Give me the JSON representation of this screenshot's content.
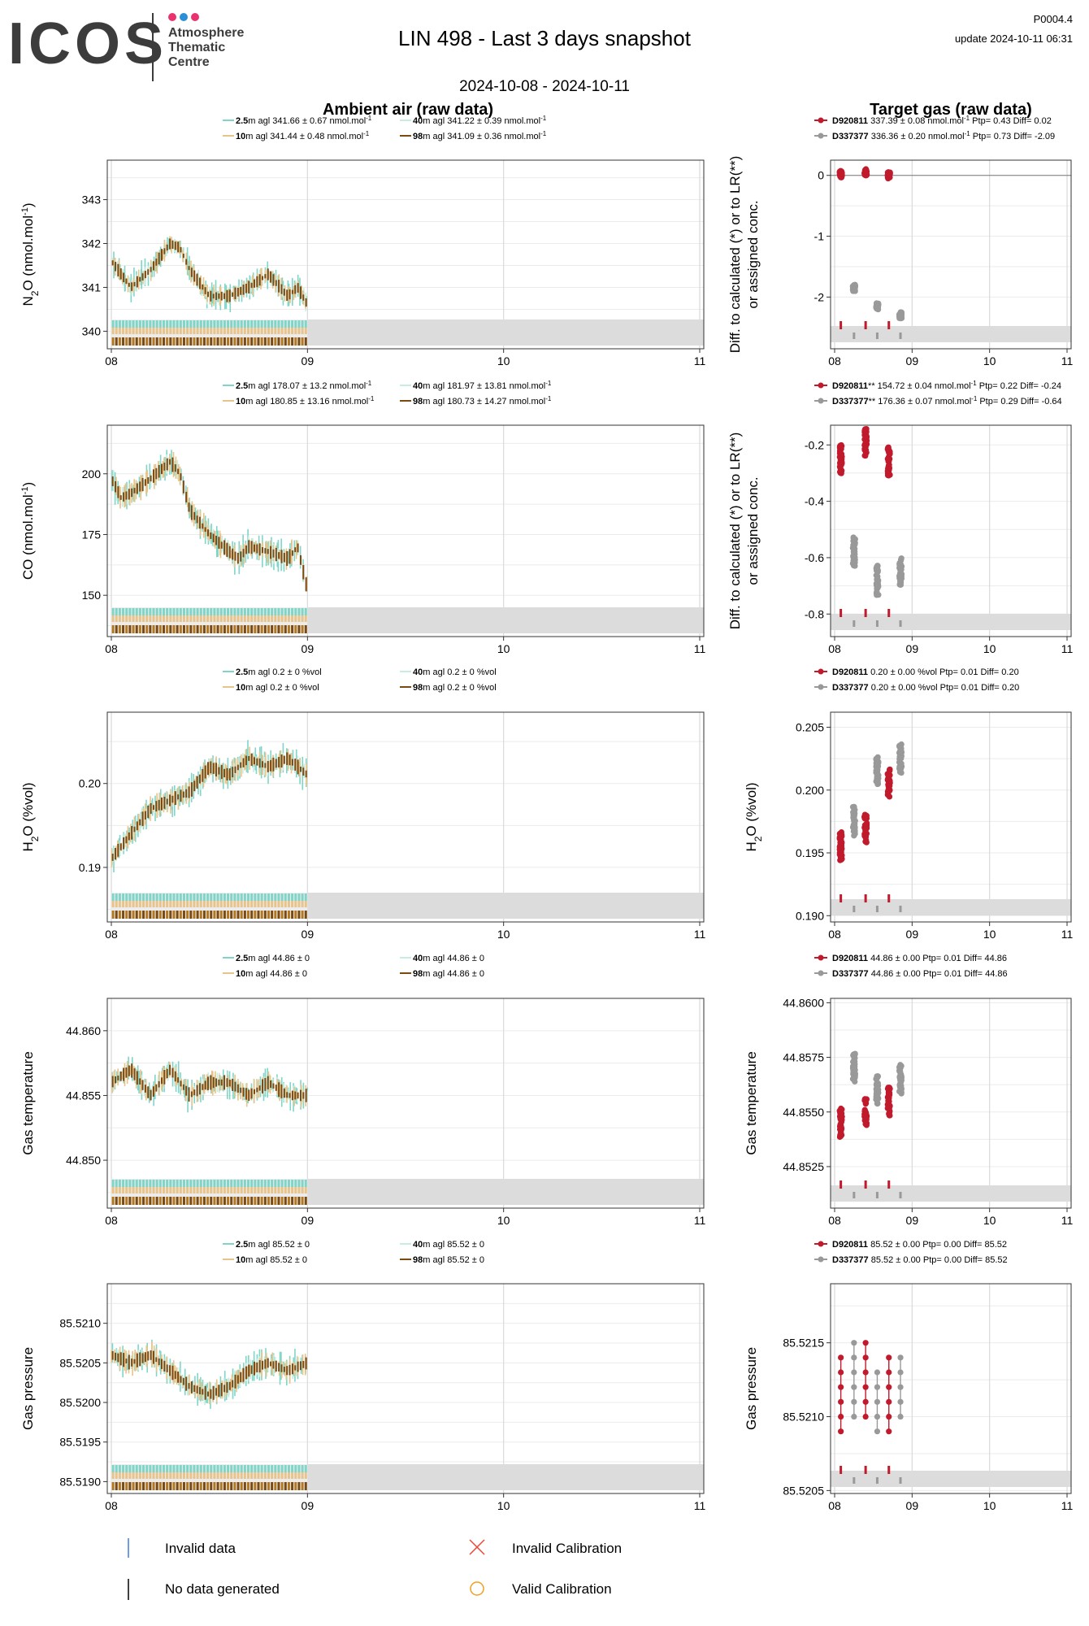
{
  "header": {
    "logo_text": "ICOS",
    "logo_subtitle": [
      "Atmosphere",
      "Thematic",
      "Centre"
    ],
    "logo_dot_colors": [
      "#e8336f",
      "#2a8fd6",
      "#e8336f"
    ],
    "title": "LIN 498 - Last 3 days snapshot",
    "date_range": "2024-10-08 - 2024-10-11",
    "version": "P0004.4",
    "update": "update  2024-10-11 06:31",
    "ambient_title": "Ambient air (raw data)",
    "target_title": "Target gas (raw data)"
  },
  "colors": {
    "h2_5": "#7fd6c8",
    "h10": "#e8c48a",
    "h40": "#c7ece0",
    "h98": "#7a4a12",
    "target_red": "#c01a2c",
    "target_grey": "#999999",
    "invalid_blue": "#3a7ddb",
    "invalid_calib": "#e84a3a",
    "valid_calib": "#f0a020"
  },
  "chart_data": [
    {
      "type": "line",
      "panel": "ambient",
      "species": "N2O",
      "ylabel_main": "N",
      "ylabel_sub": "2",
      "ylabel_rest": "O (nmol.mol",
      "ylabel_sup": "-1",
      "ylabel_end": ")",
      "xticks": [
        "08",
        "09",
        "10",
        "11"
      ],
      "xlim": [
        0,
        3
      ],
      "ylim": [
        339.6,
        343.9
      ],
      "yticks": [
        340,
        341,
        342,
        343
      ],
      "ytick_labels": [
        "340",
        "341",
        "342",
        "343"
      ],
      "legend": [
        {
          "height": "2.5",
          "text": "m agl 341.66 ± 0.67 nmol.mol",
          "sup": "-1",
          "color": "h2_5"
        },
        {
          "height": "40",
          "text": "m agl 341.22 ± 0.39 nmol.mol",
          "sup": "-1",
          "color": "h40"
        },
        {
          "height": "10",
          "text": "m agl 341.44 ± 0.48 nmol.mol",
          "sup": "-1",
          "color": "h10"
        },
        {
          "height": "98",
          "text": "m agl 341.09 ± 0.36 nmol.mol",
          "sup": "-1",
          "color": "h98"
        }
      ],
      "series": [
        {
          "name": "98",
          "x": [
            0.0,
            0.1,
            0.2,
            0.3,
            0.35,
            0.4,
            0.5,
            0.6,
            0.7,
            0.8,
            0.9,
            0.95,
            1.0
          ],
          "values": [
            341.6,
            341.0,
            341.4,
            342.0,
            341.9,
            341.4,
            340.8,
            340.8,
            341.0,
            341.3,
            340.8,
            341.0,
            340.6
          ]
        }
      ]
    },
    {
      "type": "scatter",
      "panel": "target",
      "species": "N2O",
      "ylabel_lines": [
        "Diff. to calculated (*) or to LR(**)",
        "or assigned conc."
      ],
      "xticks": [
        "08",
        "09",
        "10",
        "11"
      ],
      "xlim": [
        0,
        3
      ],
      "ylim": [
        -2.85,
        0.25
      ],
      "yticks": [
        0,
        -1,
        -2
      ],
      "ytick_labels": [
        "0",
        "-1",
        "-2"
      ],
      "zero_line": true,
      "legend": [
        {
          "cyl": "D920811",
          "text": " 337.39 ± 0.08 nmol.mol",
          "sup": "-1",
          "tail": " Ptp= 0.43 Diff= 0.02",
          "color": "target_red"
        },
        {
          "cyl": "D337377",
          "text": " 336.36 ± 0.20 nmol.mol",
          "sup": "-1",
          "tail": " Ptp= 0.73 Diff= -2.09",
          "color": "target_grey"
        }
      ],
      "series": [
        {
          "name": "D920811",
          "x": [
            0.08,
            0.4,
            0.7
          ],
          "values": [
            0.02,
            0.05,
            0.0
          ]
        },
        {
          "name": "D337377",
          "x": [
            0.25,
            0.55,
            0.85
          ],
          "values": [
            -1.85,
            -2.15,
            -2.3
          ]
        }
      ]
    },
    {
      "type": "line",
      "panel": "ambient",
      "species": "CO",
      "ylabel_main": "CO (nmol.mol",
      "ylabel_sup": "-1",
      "ylabel_end": ")",
      "xticks": [
        "08",
        "09",
        "10",
        "11"
      ],
      "xlim": [
        0,
        3
      ],
      "ylim": [
        133,
        220
      ],
      "yticks": [
        150,
        175,
        200
      ],
      "ytick_labels": [
        "150",
        "175",
        "200"
      ],
      "legend": [
        {
          "height": "2.5",
          "text": "m agl 178.07 ± 13.2 nmol.mol",
          "sup": "-1",
          "color": "h2_5"
        },
        {
          "height": "40",
          "text": "m agl 181.97 ± 13.81 nmol.mol",
          "sup": "-1",
          "color": "h40"
        },
        {
          "height": "10",
          "text": "m agl 180.85 ± 13.16 nmol.mol",
          "sup": "-1",
          "color": "h10"
        },
        {
          "height": "98",
          "text": "m agl 180.73 ± 14.27 nmol.mol",
          "sup": "-1",
          "color": "h98"
        }
      ],
      "series": [
        {
          "name": "98",
          "x": [
            0.0,
            0.05,
            0.1,
            0.2,
            0.3,
            0.35,
            0.4,
            0.5,
            0.6,
            0.65,
            0.7,
            0.8,
            0.9,
            0.95,
            1.0
          ],
          "values": [
            198,
            190,
            192,
            198,
            205,
            200,
            185,
            175,
            168,
            165,
            170,
            168,
            165,
            170,
            152
          ]
        }
      ]
    },
    {
      "type": "scatter",
      "panel": "target",
      "species": "CO",
      "ylabel_lines": [
        "Diff. to calculated (*) or to LR(**)",
        "or assigned conc."
      ],
      "xticks": [
        "08",
        "09",
        "10",
        "11"
      ],
      "xlim": [
        0,
        3
      ],
      "ylim": [
        -0.88,
        -0.13
      ],
      "yticks": [
        -0.2,
        -0.4,
        -0.6,
        -0.8
      ],
      "ytick_labels": [
        "-0.2",
        "-0.4",
        "-0.6",
        "-0.8"
      ],
      "legend": [
        {
          "cyl": "D920811",
          "text": "** 154.72 ± 0.04 nmol.mol",
          "sup": "-1",
          "tail": " Ptp= 0.22 Diff= -0.24",
          "color": "target_red"
        },
        {
          "cyl": "D337377",
          "text": "** 176.36 ± 0.07 nmol.mol",
          "sup": "-1",
          "tail": " Ptp= 0.29 Diff= -0.64",
          "color": "target_grey"
        }
      ],
      "series": [
        {
          "name": "D920811",
          "x": [
            0.08,
            0.4,
            0.7
          ],
          "values": [
            -0.25,
            -0.19,
            -0.26
          ]
        },
        {
          "name": "D337377",
          "x": [
            0.25,
            0.55,
            0.85
          ],
          "values": [
            -0.58,
            -0.68,
            -0.65
          ]
        }
      ]
    },
    {
      "type": "line",
      "panel": "ambient",
      "species": "H2O",
      "ylabel_main": "H",
      "ylabel_sub": "2",
      "ylabel_rest": "O (%vol)",
      "xticks": [
        "08",
        "09",
        "10",
        "11"
      ],
      "xlim": [
        0,
        3
      ],
      "ylim": [
        0.1835,
        0.2085
      ],
      "yticks": [
        0.19,
        0.2
      ],
      "ytick_labels": [
        "0.19",
        "0.20"
      ],
      "legend": [
        {
          "height": "2.5",
          "text": "m agl 0.2 ± 0 %vol",
          "sup": "",
          "color": "h2_5"
        },
        {
          "height": "40",
          "text": "m agl 0.2 ± 0 %vol",
          "sup": "",
          "color": "h40"
        },
        {
          "height": "10",
          "text": "m agl 0.2 ± 0 %vol",
          "sup": "",
          "color": "h10"
        },
        {
          "height": "98",
          "text": "m agl 0.2 ± 0 %vol",
          "sup": "",
          "color": "h98"
        }
      ],
      "series": [
        {
          "name": "98",
          "x": [
            0.0,
            0.1,
            0.2,
            0.3,
            0.4,
            0.5,
            0.6,
            0.7,
            0.8,
            0.9,
            1.0
          ],
          "values": [
            0.191,
            0.194,
            0.197,
            0.198,
            0.199,
            0.202,
            0.201,
            0.203,
            0.202,
            0.203,
            0.201
          ]
        }
      ]
    },
    {
      "type": "scatter",
      "panel": "target",
      "species": "H2O",
      "ylabel_main": "H",
      "ylabel_sub": "2",
      "ylabel_rest": "O (%vol)",
      "xticks": [
        "08",
        "09",
        "10",
        "11"
      ],
      "xlim": [
        0,
        3
      ],
      "ylim": [
        0.1895,
        0.2062
      ],
      "yticks": [
        0.19,
        0.195,
        0.2,
        0.205
      ],
      "ytick_labels": [
        "0.190",
        "0.195",
        "0.200",
        "0.205"
      ],
      "legend": [
        {
          "cyl": "D920811",
          "text": " 0.20 ± 0.00 %vol",
          "sup": "",
          "tail": " Ptp= 0.01 Diff= 0.20",
          "color": "target_red"
        },
        {
          "cyl": "D337377",
          "text": " 0.20 ± 0.00 %vol",
          "sup": "",
          "tail": " Ptp= 0.01 Diff= 0.20",
          "color": "target_grey"
        }
      ],
      "series": [
        {
          "name": "D920811",
          "x": [
            0.08,
            0.4,
            0.7
          ],
          "values": [
            0.1955,
            0.197,
            0.2005
          ]
        },
        {
          "name": "D337377",
          "x": [
            0.25,
            0.55,
            0.85
          ],
          "values": [
            0.1975,
            0.2015,
            0.2025
          ]
        }
      ]
    },
    {
      "type": "line",
      "panel": "ambient",
      "species": "Gas temperature",
      "ylabel_main": "Gas temperature",
      "xticks": [
        "08",
        "09",
        "10",
        "11"
      ],
      "xlim": [
        0,
        3
      ],
      "ylim": [
        44.8463,
        44.8625
      ],
      "yticks": [
        44.85,
        44.855,
        44.86
      ],
      "ytick_labels": [
        "44.850",
        "44.855",
        "44.860"
      ],
      "legend": [
        {
          "height": "2.5",
          "text": "m agl 44.86 ± 0",
          "sup": "",
          "color": "h2_5"
        },
        {
          "height": "40",
          "text": "m agl 44.86 ± 0",
          "sup": "",
          "color": "h40"
        },
        {
          "height": "10",
          "text": "m agl 44.86 ± 0",
          "sup": "",
          "color": "h10"
        },
        {
          "height": "98",
          "text": "m agl 44.86 ± 0",
          "sup": "",
          "color": "h98"
        }
      ],
      "series": [
        {
          "name": "98",
          "x": [
            0.0,
            0.1,
            0.2,
            0.3,
            0.4,
            0.5,
            0.6,
            0.7,
            0.8,
            0.9,
            1.0
          ],
          "values": [
            44.856,
            44.857,
            44.855,
            44.857,
            44.855,
            44.856,
            44.856,
            44.855,
            44.856,
            44.855,
            44.855
          ]
        }
      ]
    },
    {
      "type": "scatter",
      "panel": "target",
      "species": "Gas temperature",
      "ylabel_main": "Gas temperature",
      "xticks": [
        "08",
        "09",
        "10",
        "11"
      ],
      "xlim": [
        0,
        3
      ],
      "ylim": [
        44.8506,
        44.8602
      ],
      "yticks": [
        44.8525,
        44.855,
        44.8575,
        44.86
      ],
      "ytick_labels": [
        "44.8525",
        "44.8550",
        "44.8575",
        "44.8600"
      ],
      "legend": [
        {
          "cyl": "D920811",
          "text": " 44.86 ± 0.00",
          "sup": "",
          "tail": "  Ptp= 0.01 Diff= 44.86",
          "color": "target_red"
        },
        {
          "cyl": "D337377",
          "text": " 44.86 ± 0.00",
          "sup": "",
          "tail": "  Ptp= 0.01 Diff= 44.86",
          "color": "target_grey"
        }
      ],
      "series": [
        {
          "name": "D920811",
          "x": [
            0.08,
            0.4,
            0.7
          ],
          "values": [
            44.8545,
            44.855,
            44.8555
          ]
        },
        {
          "name": "D337377",
          "x": [
            0.25,
            0.55,
            0.85
          ],
          "values": [
            44.857,
            44.856,
            44.8565
          ]
        }
      ]
    },
    {
      "type": "line",
      "panel": "ambient",
      "species": "Gas pressure",
      "ylabel_main": "Gas pressure",
      "xticks": [
        "08",
        "09",
        "10",
        "11"
      ],
      "xlim": [
        0,
        3
      ],
      "ylim": [
        85.51885,
        85.5215
      ],
      "yticks": [
        85.519,
        85.5195,
        85.52,
        85.5205,
        85.521
      ],
      "ytick_labels": [
        "85.5190",
        "85.5195",
        "85.5200",
        "85.5205",
        "85.5210"
      ],
      "legend": [
        {
          "height": "2.5",
          "text": "m agl 85.52 ± 0",
          "sup": "",
          "color": "h2_5"
        },
        {
          "height": "40",
          "text": "m agl 85.52 ± 0",
          "sup": "",
          "color": "h40"
        },
        {
          "height": "10",
          "text": "m agl 85.52 ± 0",
          "sup": "",
          "color": "h10"
        },
        {
          "height": "98",
          "text": "m agl 85.52 ± 0",
          "sup": "",
          "color": "h98"
        }
      ],
      "series": [
        {
          "name": "98",
          "x": [
            0.0,
            0.1,
            0.2,
            0.3,
            0.4,
            0.5,
            0.6,
            0.7,
            0.8,
            0.9,
            1.0
          ],
          "values": [
            85.5206,
            85.5205,
            85.5206,
            85.5204,
            85.5202,
            85.5201,
            85.5202,
            85.5204,
            85.5205,
            85.5204,
            85.5205
          ]
        }
      ]
    },
    {
      "type": "scatter",
      "panel": "target",
      "species": "Gas pressure",
      "ylabel_main": "Gas pressure",
      "xticks": [
        "08",
        "09",
        "10",
        "11"
      ],
      "xlim": [
        0,
        3
      ],
      "ylim": [
        85.52048,
        85.5219
      ],
      "yticks": [
        85.5205,
        85.521,
        85.5215
      ],
      "ytick_labels": [
        "85.5205",
        "85.5210",
        "85.5215"
      ],
      "legend": [
        {
          "cyl": "D920811",
          "text": " 85.52 ± 0.00",
          "sup": "",
          "tail": "  Ptp= 0.00 Diff= 85.52",
          "color": "target_red"
        },
        {
          "cyl": "D337377",
          "text": " 85.52 ± 0.00",
          "sup": "",
          "tail": "  Ptp= 0.00 Diff= 85.52",
          "color": "target_grey"
        }
      ],
      "series": [
        {
          "name": "D920811",
          "x": [
            0.08,
            0.4,
            0.7
          ],
          "values": [
            85.5212,
            85.5213,
            85.5212
          ]
        },
        {
          "name": "D337377",
          "x": [
            0.25,
            0.55,
            0.85
          ],
          "values": [
            85.5213,
            85.5211,
            85.5212
          ]
        }
      ]
    }
  ],
  "footer": {
    "legend": [
      {
        "label": "Invalid data",
        "icon": "blue-tick-icon"
      },
      {
        "label": "Invalid Calibration",
        "icon": "red-cross-icon"
      },
      {
        "label": "No data generated",
        "icon": "black-tick-icon"
      },
      {
        "label": "Valid Calibration",
        "icon": "orange-circle-icon"
      }
    ]
  }
}
